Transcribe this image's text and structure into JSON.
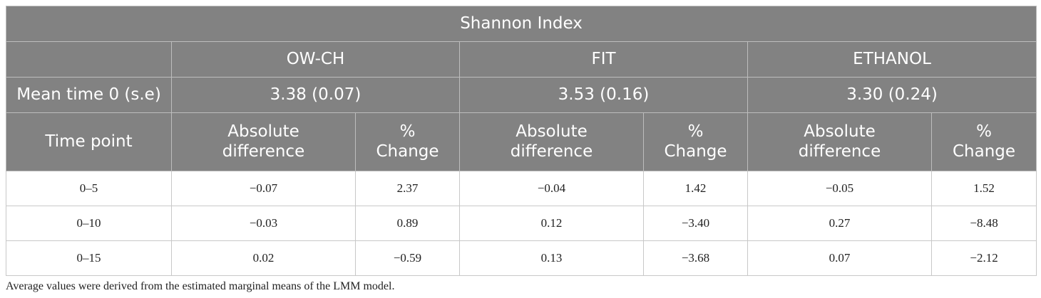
{
  "table": {
    "title": "Shannon Index",
    "groups": [
      "OW-CH",
      "FIT",
      "ETHANOL"
    ],
    "mean_label": "Mean time 0 (s.e)",
    "means": [
      "3.38 (0.07)",
      "3.53 (0.16)",
      "3.30 (0.24)"
    ],
    "time_point_label": "Time point",
    "sub_headers": {
      "abs_line1": "Absolute",
      "abs_line2": "difference",
      "pct_line1": "%",
      "pct_line2": "Change"
    },
    "rows": [
      {
        "time": "0–5",
        "cells": [
          "−0.07",
          "2.37",
          "−0.04",
          "1.42",
          "−0.05",
          "1.52"
        ]
      },
      {
        "time": "0–10",
        "cells": [
          "−0.03",
          "0.89",
          "0.12",
          "−3.40",
          "0.27",
          "−8.48"
        ]
      },
      {
        "time": "0–15",
        "cells": [
          "0.02",
          "−0.59",
          "0.13",
          "−3.68",
          "0.07",
          "−2.12"
        ]
      }
    ]
  },
  "footnote": "Average values were derived from the estimated marginal means of the LMM model."
}
